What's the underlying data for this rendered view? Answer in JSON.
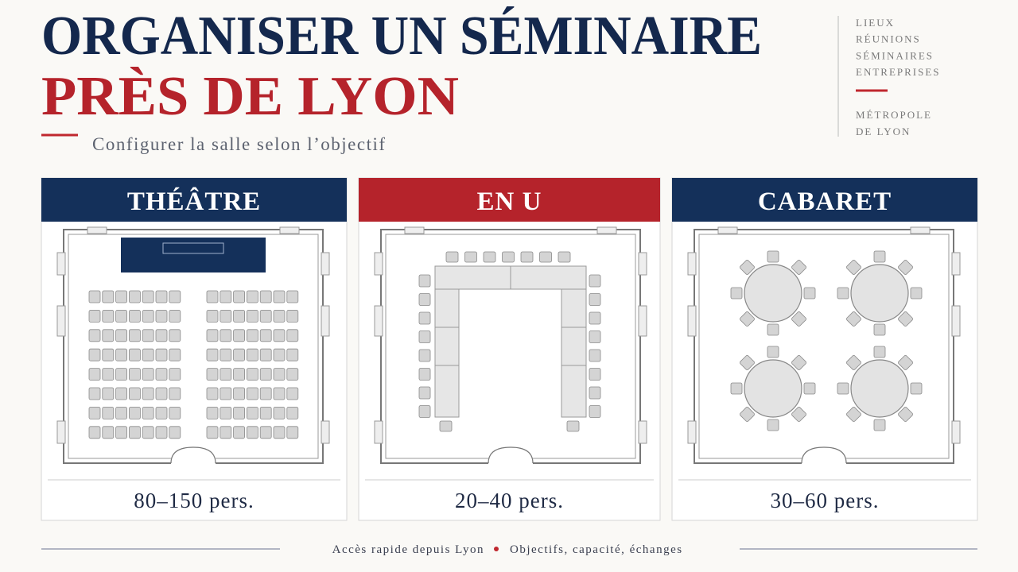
{
  "header": {
    "title_line1": "ORGANISER UN SÉMINAIRE",
    "title_line2": "PRÈS DE LYON",
    "subtitle": "Configurer la salle selon l’objectif"
  },
  "sidebar": {
    "tags": [
      "LIEUX",
      "RÉUNIONS",
      "SÉMINAIRES",
      "ENTREPRISES"
    ],
    "location": [
      "MÉTROPOLE",
      "DE LYON"
    ]
  },
  "cards": [
    {
      "title": "THÉÂTRE",
      "capacity": "80–150 pers."
    },
    {
      "title": "EN U",
      "capacity": "20–40 pers."
    },
    {
      "title": "CABARET",
      "capacity": "30–60 pers."
    }
  ],
  "footer": {
    "left": "Accès rapide depuis Lyon",
    "right": "Objectifs, capacité, échanges"
  }
}
